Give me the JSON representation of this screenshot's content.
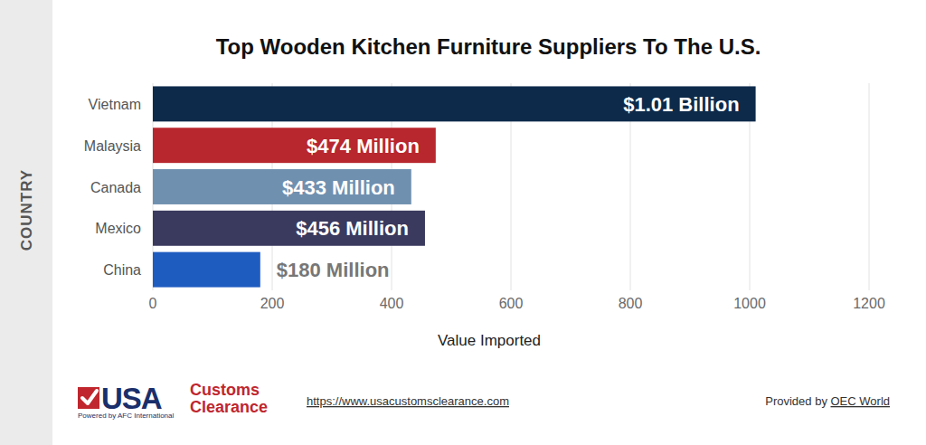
{
  "chart_data": {
    "type": "bar",
    "orientation": "horizontal",
    "title": "Top Wooden Kitchen Furniture Suppliers To The U.S.",
    "x_label": "Value Imported",
    "y_label": "COUNTRY",
    "categories": [
      "Vietnam",
      "Malaysia",
      "Canada",
      "Mexico",
      "China"
    ],
    "values": [
      1010,
      474,
      433,
      456,
      180
    ],
    "value_labels": [
      "$1.01 Billion",
      "$474 Million",
      "$433 Million",
      "$456 Million",
      "$180 Million"
    ],
    "colors": [
      "#0d2a4a",
      "#b8262e",
      "#7090b0",
      "#3a3a5e",
      "#1f5cc0"
    ],
    "xlim": [
      0,
      1200
    ],
    "xticks": [
      0,
      200,
      400,
      600,
      800,
      1000,
      1200
    ],
    "grid": true,
    "data_labels": true,
    "annotations": [
      "USA",
      "Customs",
      "Clearance",
      "Powered by AFC International",
      "https://www.usacustomsclearance.com",
      "Provided by",
      "OEC World"
    ]
  }
}
